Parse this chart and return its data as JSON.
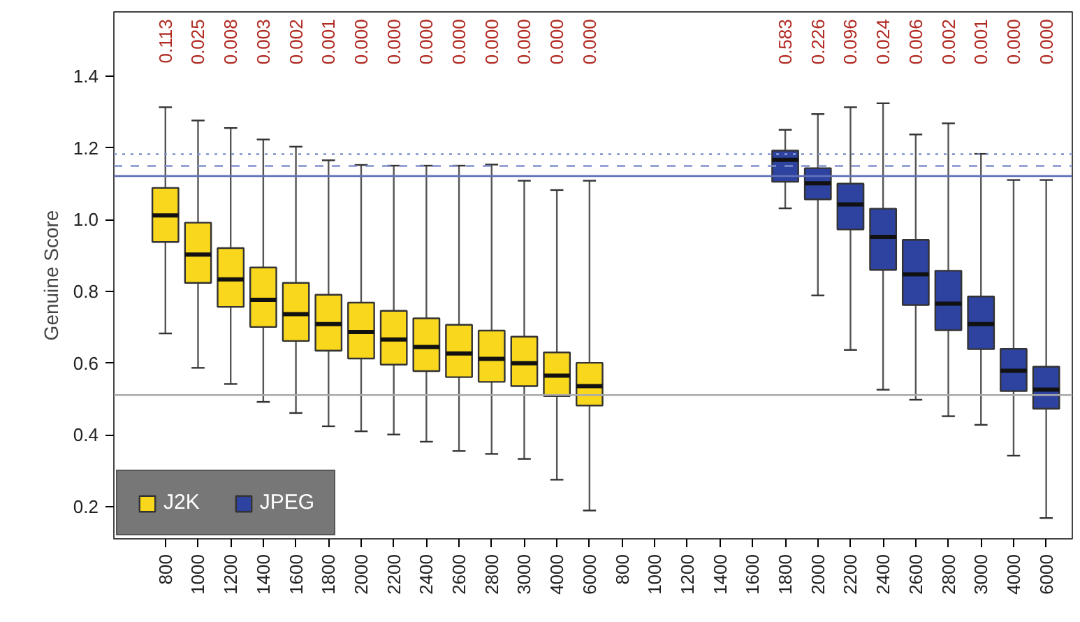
{
  "chart_data": {
    "type": "box",
    "ylabel": "Genuine Score",
    "categories": [
      "800",
      "1000",
      "1200",
      "1400",
      "1600",
      "1800",
      "2000",
      "2200",
      "2400",
      "2600",
      "2800",
      "3000",
      "4000",
      "6000",
      "800",
      "1000",
      "1200",
      "1400",
      "1600",
      "1800",
      "2000",
      "2200",
      "2400",
      "2600",
      "2800",
      "3000",
      "4000",
      "6000"
    ],
    "ylim": [
      0.11,
      1.58
    ],
    "yticks": [
      0.2,
      0.4,
      0.6,
      0.8,
      {
        "value": 1,
        "label": "1.0"
      },
      1.2,
      1.4
    ],
    "grid": false,
    "legend": "bottom left",
    "ref_lines": [
      {
        "axis": "y",
        "value": 1.183,
        "color": "#8898d0",
        "line_style": "dotted"
      },
      {
        "axis": "y",
        "value": 1.15,
        "color": "#8090cc",
        "line_style": "dashed"
      },
      {
        "axis": "y",
        "value": 1.122,
        "color": "#6070b8",
        "line_style": "solid"
      },
      {
        "axis": "y",
        "value": 0.511,
        "color": "#aaaaaa",
        "line_style": "solid"
      }
    ],
    "series": [
      {
        "name": "J2K",
        "color": "#f9d71c",
        "value_labels": [
          "0.113",
          "0.025",
          "0.008",
          "0.003",
          "0.002",
          "0.001",
          "0.000",
          "0.000",
          "0.000",
          "0.000",
          "0.000",
          "0.000",
          "0.000",
          "0.000",
          null,
          null,
          null,
          null,
          null,
          null,
          null,
          null,
          null,
          null,
          null,
          null,
          null,
          null
        ],
        "boxes": [
          {
            "low": 0.683,
            "q1": 0.938,
            "median": 1.012,
            "q3": 1.089,
            "high": 1.314
          },
          {
            "low": 0.587,
            "q1": 0.824,
            "median": 0.903,
            "q3": 0.992,
            "high": 1.277
          },
          {
            "low": 0.542,
            "q1": 0.757,
            "median": 0.834,
            "q3": 0.921,
            "high": 1.256
          },
          {
            "low": 0.492,
            "q1": 0.701,
            "median": 0.777,
            "q3": 0.867,
            "high": 1.224
          },
          {
            "low": 0.461,
            "q1": 0.662,
            "median": 0.737,
            "q3": 0.824,
            "high": 1.204
          },
          {
            "low": 0.424,
            "q1": 0.635,
            "median": 0.709,
            "q3": 0.791,
            "high": 1.166
          },
          {
            "low": 0.41,
            "q1": 0.613,
            "median": 0.687,
            "q3": 0.769,
            "high": 1.153
          },
          {
            "low": 0.401,
            "q1": 0.596,
            "median": 0.666,
            "q3": 0.746,
            "high": 1.151
          },
          {
            "low": 0.381,
            "q1": 0.578,
            "median": 0.645,
            "q3": 0.725,
            "high": 1.151
          },
          {
            "low": 0.355,
            "q1": 0.561,
            "median": 0.627,
            "q3": 0.707,
            "high": 1.151
          },
          {
            "low": 0.347,
            "q1": 0.548,
            "median": 0.612,
            "q3": 0.691,
            "high": 1.154
          },
          {
            "low": 0.333,
            "q1": 0.536,
            "median": 0.6,
            "q3": 0.674,
            "high": 1.109
          },
          {
            "low": 0.275,
            "q1": 0.508,
            "median": 0.565,
            "q3": 0.63,
            "high": 1.083
          },
          {
            "low": 0.189,
            "q1": 0.482,
            "median": 0.536,
            "q3": 0.601,
            "high": 1.109
          },
          null,
          null,
          null,
          null,
          null,
          null,
          null,
          null,
          null,
          null,
          null,
          null,
          null,
          null
        ]
      },
      {
        "name": "JPEG",
        "color": "#2e43a0",
        "value_labels": [
          null,
          null,
          null,
          null,
          null,
          null,
          null,
          null,
          null,
          null,
          null,
          null,
          null,
          null,
          null,
          null,
          null,
          null,
          null,
          "0.583",
          "0.226",
          "0.096",
          "0.024",
          "0.006",
          "0.002",
          "0.001",
          "0.000",
          "0.000"
        ],
        "boxes": [
          null,
          null,
          null,
          null,
          null,
          null,
          null,
          null,
          null,
          null,
          null,
          null,
          null,
          null,
          null,
          null,
          null,
          null,
          null,
          {
            "low": 1.032,
            "q1": 1.106,
            "median": 1.167,
            "q3": 1.193,
            "high": 1.251
          },
          {
            "low": 0.789,
            "q1": 1.057,
            "median": 1.102,
            "q3": 1.144,
            "high": 1.295
          },
          {
            "low": 0.637,
            "q1": 0.973,
            "median": 1.043,
            "q3": 1.101,
            "high": 1.314
          },
          {
            "low": 0.526,
            "q1": 0.86,
            "median": 0.952,
            "q3": 1.031,
            "high": 1.325
          },
          {
            "low": 0.498,
            "q1": 0.762,
            "median": 0.848,
            "q3": 0.944,
            "high": 1.238
          },
          {
            "low": 0.452,
            "q1": 0.692,
            "median": 0.766,
            "q3": 0.858,
            "high": 1.269
          },
          {
            "low": 0.428,
            "q1": 0.639,
            "median": 0.709,
            "q3": 0.786,
            "high": 1.184
          },
          {
            "low": 0.342,
            "q1": 0.522,
            "median": 0.579,
            "q3": 0.64,
            "high": 1.111
          },
          {
            "low": 0.168,
            "q1": 0.473,
            "median": 0.526,
            "q3": 0.59,
            "high": 1.111
          }
        ]
      }
    ]
  }
}
